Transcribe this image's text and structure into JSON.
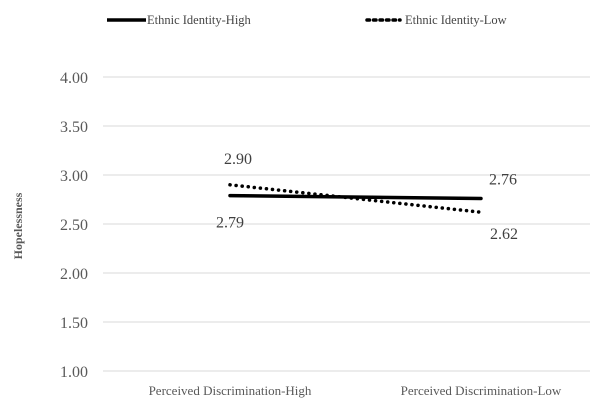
{
  "chart_data": {
    "type": "line",
    "title": "",
    "xlabel": "",
    "ylabel": "Hopelessness",
    "categories": [
      "Perceived Discrimination-High",
      "Perceived Discrimination-Low"
    ],
    "ylim": [
      1.0,
      4.0
    ],
    "yticks": [
      "1.00",
      "1.50",
      "2.00",
      "2.50",
      "3.00",
      "3.50",
      "4.00"
    ],
    "grid": true,
    "legend_position": "top",
    "series": [
      {
        "name": "Ethnic Identity-High",
        "values": [
          2.79,
          2.76
        ],
        "labels": [
          "2.79",
          "2.76"
        ],
        "style": "solid",
        "color": "#000000"
      },
      {
        "name": "Ethnic Identity-Low",
        "values": [
          2.9,
          2.62
        ],
        "labels": [
          "2.90",
          "2.62"
        ],
        "style": "dotted",
        "color": "#000000"
      }
    ]
  }
}
